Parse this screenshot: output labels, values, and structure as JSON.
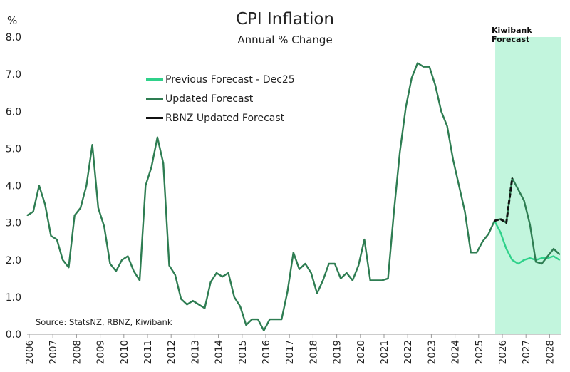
{
  "chart_data": {
    "type": "line",
    "title": "CPI Inflation",
    "subtitle": "Annual % Change",
    "ylabel": "%",
    "ylim": [
      0,
      8
    ],
    "yticks": [
      "0.0",
      "1.0",
      "2.0",
      "3.0",
      "4.0",
      "5.0",
      "6.0",
      "7.0",
      "8.0"
    ],
    "xticks": [
      "2006",
      "2007",
      "2008",
      "2009",
      "2010",
      "2011",
      "2012",
      "2013",
      "2014",
      "2015",
      "2016",
      "2017",
      "2018",
      "2019",
      "2020",
      "2021",
      "2022",
      "2023",
      "2024",
      "2025",
      "2026",
      "2027",
      "2028"
    ],
    "xlim": [
      2006,
      2028.5
    ],
    "grid": false,
    "legend_position": "top-left",
    "shaded_region": {
      "label": "Kiwibank Forecast",
      "x": [
        2025.7,
        2028.5
      ],
      "color": "#c2f5dd"
    },
    "source": "Source: StatsNZ, RBNZ, Kiwibank",
    "frequency": "quarterly",
    "series": [
      {
        "name": "Updated Forecast",
        "color": "#2e7d52",
        "dash": false,
        "first_x": 2005.92,
        "values": [
          3.2,
          3.3,
          4.0,
          3.5,
          2.65,
          2.55,
          2.0,
          1.8,
          3.2,
          3.4,
          4.0,
          5.1,
          3.4,
          2.9,
          1.9,
          1.7,
          2.0,
          2.1,
          1.7,
          1.45,
          4.0,
          4.5,
          5.3,
          4.6,
          1.85,
          1.6,
          0.95,
          0.8,
          0.9,
          0.8,
          0.7,
          1.4,
          1.65,
          1.55,
          1.65,
          1.0,
          0.75,
          0.25,
          0.4,
          0.4,
          0.1,
          0.4,
          0.4,
          0.4,
          1.15,
          2.2,
          1.75,
          1.9,
          1.65,
          1.1,
          1.45,
          1.9,
          1.9,
          1.5,
          1.65,
          1.45,
          1.85,
          2.55,
          1.45,
          1.45,
          1.45,
          1.5,
          3.3,
          4.9,
          6.1,
          6.9,
          7.3,
          7.2,
          7.2,
          6.7,
          6.0,
          5.6,
          4.7,
          4.0,
          3.3,
          2.2,
          2.2,
          2.5,
          2.7,
          3.05,
          3.1,
          3.0,
          4.2,
          3.9,
          3.6,
          2.95,
          1.95,
          1.9,
          2.1,
          2.3,
          2.15
        ]
      },
      {
        "name": "Previous Forecast - Dec25",
        "color": "#2fd18a",
        "dash": false,
        "first_x": 2025.67,
        "values": [
          3.05,
          2.75,
          2.3,
          2.0,
          1.9,
          2.0,
          2.05,
          2.0,
          2.05,
          2.05,
          2.1,
          2.0
        ]
      },
      {
        "name": "RBNZ Updated Forecast",
        "color": "#111111",
        "dash": true,
        "first_x": 2025.67,
        "values": [
          3.05,
          3.1,
          3.0,
          4.2
        ]
      }
    ]
  }
}
